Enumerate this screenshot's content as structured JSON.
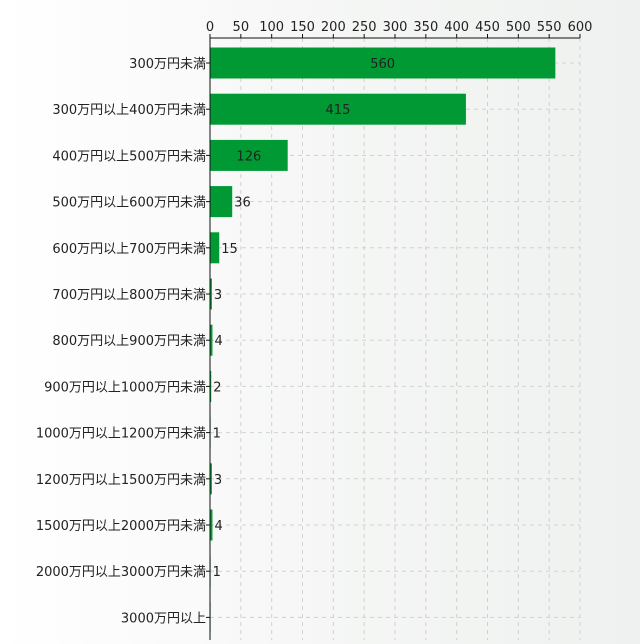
{
  "colors": {
    "bar": "#009933",
    "axis": "#111111",
    "grid": "#cfd3d0",
    "text": "#222222"
  },
  "chart_data": {
    "type": "bar",
    "orientation": "horizontal",
    "title": "",
    "xlabel": "",
    "ylabel": "",
    "xlim": [
      0,
      600
    ],
    "x_axis_position": "top",
    "grid": true,
    "x_ticks": [
      0,
      50,
      100,
      150,
      200,
      250,
      300,
      350,
      400,
      450,
      500,
      550,
      600
    ],
    "categories": [
      "300万円未満",
      "300万円以上400万円未満",
      "400万円以上500万円未満",
      "500万円以上600万円未満",
      "600万円以上700万円未満",
      "700万円以上800万円未満",
      "800万円以上900万円未満",
      "900万円以上1000万円未満",
      "1000万円以上1200万円未満",
      "1200万円以上1500万円未満",
      "1500万円以上2000万円未満",
      "2000万円以上3000万円未満",
      "3000万円以上"
    ],
    "values": [
      560,
      415,
      126,
      36,
      15,
      3,
      4,
      2,
      1,
      3,
      4,
      1,
      1
    ],
    "data_labels": [
      "560",
      "415",
      "126",
      "36",
      "15",
      "3",
      "4",
      "2",
      "1",
      "3",
      "4",
      "1",
      ""
    ]
  }
}
